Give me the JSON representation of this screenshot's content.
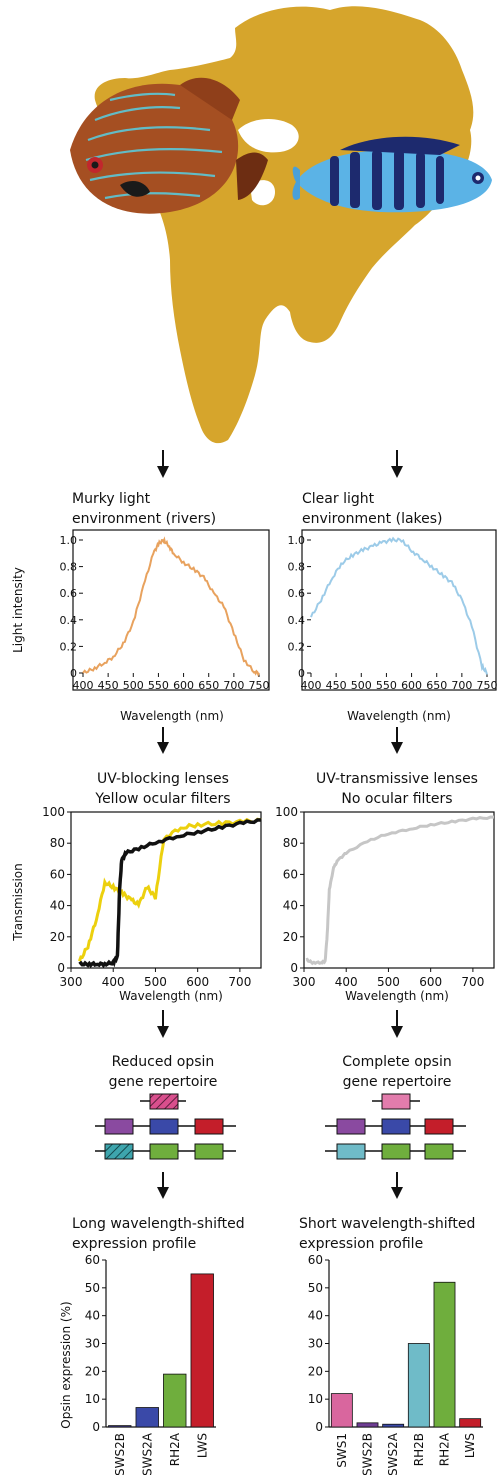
{
  "environment": {
    "left": {
      "title_line1": "Murky light",
      "title_line2": "environment (rivers)"
    },
    "right": {
      "title_line1": "Clear light",
      "title_line2": "environment (lakes)"
    }
  },
  "light_panel": {
    "ylabel": "Light intensity",
    "xlabel": "Wavelength (nm)",
    "yticks": [
      "0",
      "0.2",
      "0.4",
      "0.6",
      "0.8",
      "1.0"
    ],
    "xticks": [
      "400",
      "450",
      "500",
      "550",
      "600",
      "650",
      "700",
      "750"
    ],
    "colors": {
      "left": "#e8a25e",
      "right": "#9ccbe8"
    }
  },
  "lens": {
    "left": {
      "line1": "UV-blocking lenses",
      "line2": "Yellow ocular filters"
    },
    "right": {
      "line1": "UV-transmissive lenses",
      "line2": "No ocular filters"
    }
  },
  "transmission_panel": {
    "ylabel": "Transmission",
    "xlabel": "Wavelength (nm)",
    "yticks": [
      "0",
      "20",
      "40",
      "60",
      "80",
      "100"
    ],
    "xticks": [
      "300",
      "400",
      "500",
      "600",
      "700"
    ],
    "colors": {
      "yellow": "#ecd00e",
      "black": "#111111",
      "grey": "#c6c6c6"
    }
  },
  "opsin_repertoire": {
    "left": {
      "line1": "Reduced opsin",
      "line2": "gene repertoire"
    },
    "right": {
      "line1": "Complete opsin",
      "line2": "gene repertoire"
    }
  },
  "expression": {
    "left": {
      "line1": "Long wavelength-shifted",
      "line2": "expression profile"
    },
    "right": {
      "line1": "Short wavelength-shifted",
      "line2": "expression profile"
    }
  },
  "chart_data": [
    {
      "type": "line",
      "x_axis_label": "Wavelength (nm)",
      "y_axis_label": "Light intensity",
      "xlim": [
        400,
        750
      ],
      "ylim": [
        0,
        1.0
      ],
      "series": [
        {
          "x": [
            400,
            420,
            440,
            460,
            480,
            500,
            520,
            540,
            550,
            560,
            570,
            580,
            600,
            620,
            640,
            660,
            680,
            700,
            720,
            740,
            750
          ],
          "y": [
            0.0,
            0.03,
            0.07,
            0.12,
            0.22,
            0.38,
            0.65,
            0.9,
            0.97,
            1.0,
            0.96,
            0.9,
            0.83,
            0.78,
            0.72,
            0.6,
            0.5,
            0.3,
            0.1,
            0.01,
            0.0
          ]
        }
      ]
    },
    {
      "type": "line",
      "x_axis_label": "Wavelength (nm)",
      "y_axis_label": "Light intensity",
      "xlim": [
        400,
        750
      ],
      "ylim": [
        0,
        1.0
      ],
      "series": [
        {
          "x": [
            400,
            420,
            440,
            460,
            480,
            500,
            520,
            540,
            560,
            580,
            600,
            620,
            640,
            660,
            680,
            700,
            720,
            740,
            750
          ],
          "y": [
            0.42,
            0.55,
            0.7,
            0.82,
            0.88,
            0.92,
            0.95,
            0.98,
            1.0,
            1.0,
            0.92,
            0.86,
            0.8,
            0.74,
            0.68,
            0.55,
            0.35,
            0.05,
            0.0
          ]
        }
      ]
    },
    {
      "type": "line",
      "x_axis_label": "Wavelength (nm)",
      "y_axis_label": "Transmission",
      "xlim": [
        300,
        750
      ],
      "ylim": [
        0,
        100
      ],
      "series": [
        {
          "x": [
            320,
            340,
            360,
            380,
            400,
            420,
            440,
            460,
            480,
            500,
            520,
            560,
            600,
            650,
            700,
            750
          ],
          "y": [
            2,
            12,
            30,
            55,
            52,
            48,
            44,
            40,
            52,
            45,
            85,
            92,
            94,
            95,
            96,
            97
          ]
        },
        {
          "x": [
            320,
            340,
            360,
            380,
            400,
            410,
            415,
            420,
            430,
            460,
            500,
            550,
            600,
            650,
            700,
            750
          ],
          "y": [
            0,
            0,
            0,
            0,
            1,
            5,
            50,
            70,
            75,
            78,
            82,
            86,
            89,
            92,
            95,
            97
          ]
        }
      ]
    },
    {
      "type": "line",
      "x_axis_label": "Wavelength (nm)",
      "y_axis_label": "Transmission",
      "xlim": [
        300,
        750
      ],
      "ylim": [
        0,
        100
      ],
      "series": [
        {
          "x": [
            305,
            320,
            340,
            350,
            355,
            360,
            370,
            380,
            400,
            450,
            500,
            550,
            600,
            650,
            700,
            750
          ],
          "y": [
            3,
            1,
            1,
            2,
            20,
            50,
            65,
            70,
            75,
            83,
            88,
            91,
            94,
            96,
            98,
            99
          ]
        }
      ]
    },
    {
      "type": "bar",
      "y_axis_label": "Opsin expression (%)",
      "ylim": [
        0,
        60
      ],
      "categories": [
        "SWS2B",
        "SWS2A",
        "RH2A",
        "LWS"
      ],
      "values": [
        0.5,
        7,
        19,
        55
      ],
      "colors": [
        "#3e3a8c",
        "#3a49a8",
        "#6fae3d",
        "#c41e2a"
      ]
    },
    {
      "type": "bar",
      "y_axis_label": "",
      "ylim": [
        0,
        60
      ],
      "categories": [
        "SWS1",
        "SWS2B",
        "SWS2A",
        "RH2B",
        "RH2A",
        "LWS"
      ],
      "values": [
        12,
        1.5,
        1,
        30,
        52,
        3
      ],
      "colors": [
        "#d9669e",
        "#6e3d93",
        "#3a49a8",
        "#6fbbc8",
        "#6fae3d",
        "#c41e2a"
      ]
    }
  ],
  "opsin_gene_colors": {
    "left": {
      "top": [
        "#d94f8d"
      ],
      "mid": [
        "#8a4aa0",
        "#3a49a8",
        "#c41e2a"
      ],
      "bot": [
        "#3ea5ad",
        "#6fae3d",
        "#6fae3d"
      ]
    },
    "right": {
      "top": [
        "#e27cac"
      ],
      "mid": [
        "#8a4aa0",
        "#3a49a8",
        "#c41e2a"
      ],
      "bot": [
        "#6fbbc8",
        "#6fae3d",
        "#6fae3d"
      ]
    }
  }
}
